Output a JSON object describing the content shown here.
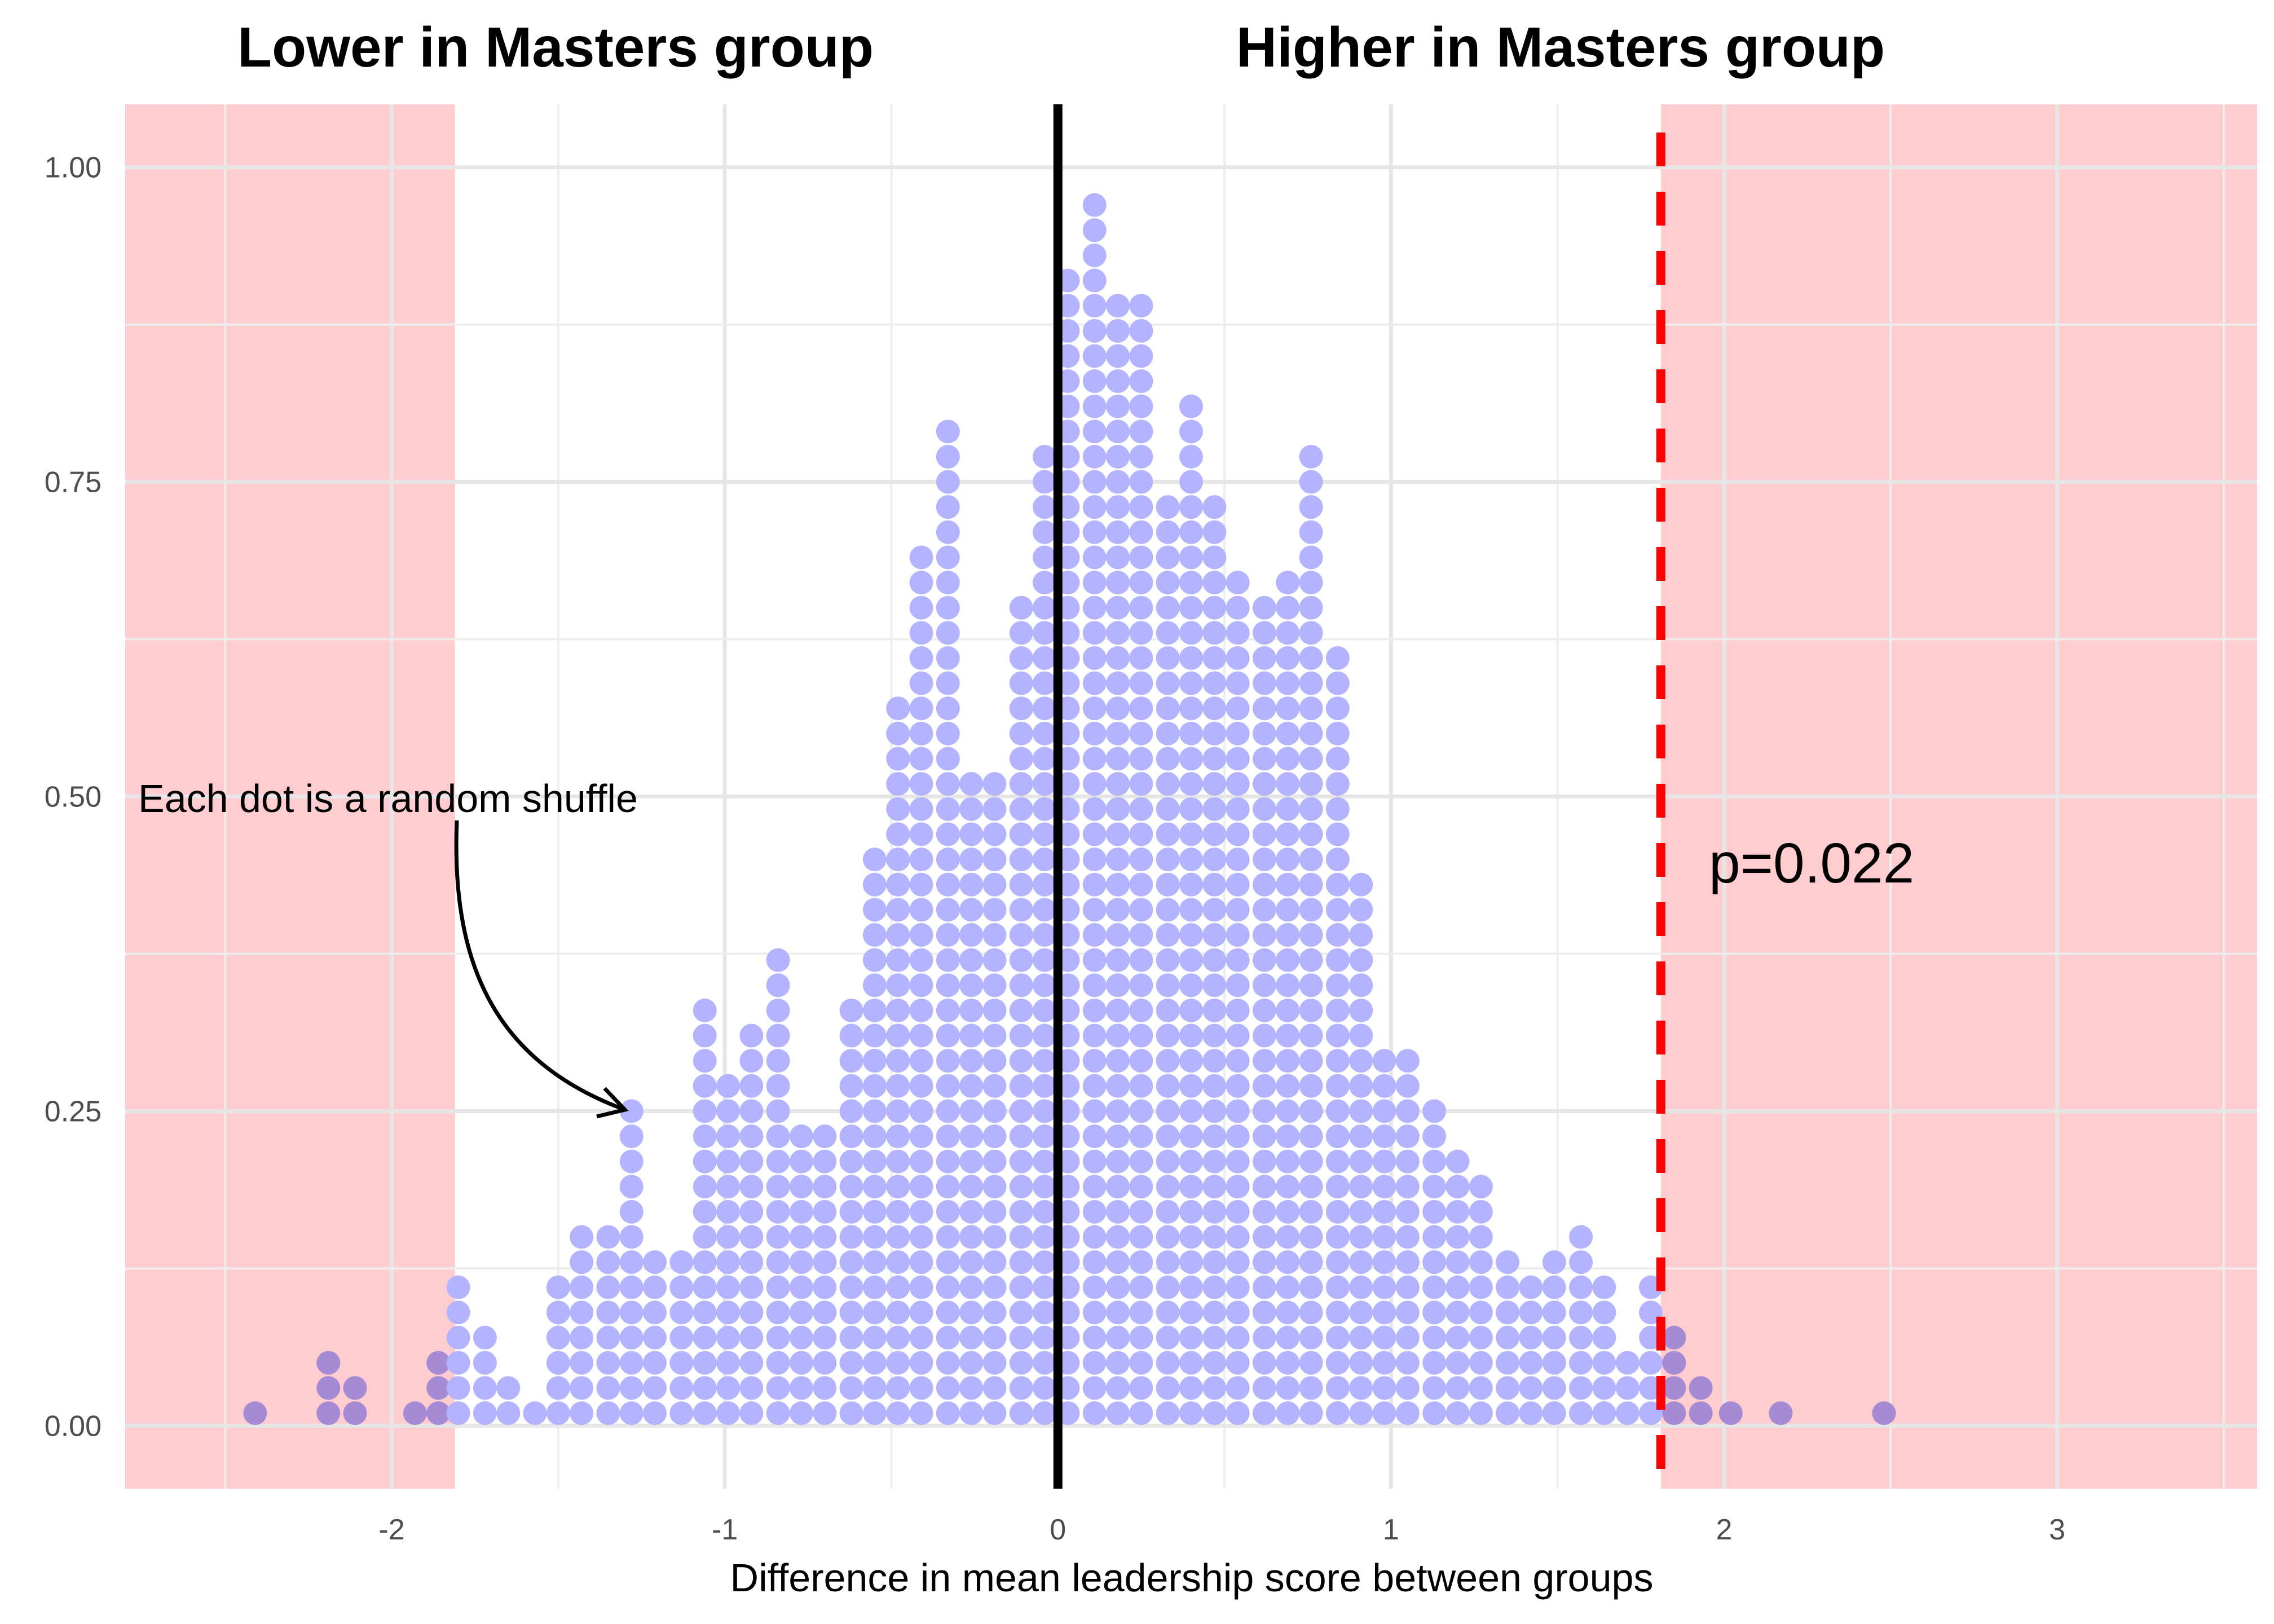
{
  "chart_data": {
    "type": "dotplot",
    "title": "",
    "xlabel": "Difference in mean leadership score between groups",
    "ylabel": "",
    "xlim": [
      -2.8,
      3.6
    ],
    "ylim": [
      -0.05,
      1.05
    ],
    "x_ticks": [
      -2,
      -1,
      0,
      1,
      2,
      3
    ],
    "y_ticks": [
      0,
      0.25,
      0.5,
      0.75,
      1
    ],
    "y_tick_labels": [
      "0.00",
      "0.25",
      "0.50",
      "0.75",
      "1.00"
    ],
    "x_tick_labels": [
      "-2",
      "-1",
      "0",
      "1",
      "2",
      "3"
    ],
    "grid": true,
    "dot_color": "#b3b3ff",
    "dot_color_in_critical_region": "#a58ad4",
    "dot_step_y": 0.02,
    "group_labels": {
      "left": "Lower in Masters group",
      "right": "Higher in Masters group"
    },
    "critical_regions": [
      {
        "from": -2.8,
        "to": -1.81,
        "color": "#ffcccf"
      },
      {
        "from": 1.81,
        "to": 3.6,
        "color": "#ffcccf"
      }
    ],
    "reference_line": {
      "x": 0,
      "color": "#000000"
    },
    "observed_line": {
      "x": 1.81,
      "color": "#ff0000",
      "style": "dashed"
    },
    "annotations": {
      "dot_note": "Each dot is a random shuffle",
      "p_value": "p=0.022"
    },
    "bins": [
      {
        "x": -2.41,
        "count": 1
      },
      {
        "x": -2.19,
        "count": 3
      },
      {
        "x": -2.11,
        "count": 2
      },
      {
        "x": -1.93,
        "count": 1
      },
      {
        "x": -1.86,
        "count": 3
      },
      {
        "x": -1.8,
        "count": 6
      },
      {
        "x": -1.72,
        "count": 4
      },
      {
        "x": -1.65,
        "count": 2
      },
      {
        "x": -1.57,
        "count": 1
      },
      {
        "x": -1.5,
        "count": 6
      },
      {
        "x": -1.43,
        "count": 8
      },
      {
        "x": -1.35,
        "count": 8
      },
      {
        "x": -1.28,
        "count": 13
      },
      {
        "x": -1.21,
        "count": 7
      },
      {
        "x": -1.13,
        "count": 7
      },
      {
        "x": -1.06,
        "count": 17
      },
      {
        "x": -0.99,
        "count": 14
      },
      {
        "x": -0.92,
        "count": 16
      },
      {
        "x": -0.84,
        "count": 19
      },
      {
        "x": -0.77,
        "count": 12
      },
      {
        "x": -0.7,
        "count": 12
      },
      {
        "x": -0.62,
        "count": 17
      },
      {
        "x": -0.55,
        "count": 23
      },
      {
        "x": -0.48,
        "count": 29
      },
      {
        "x": -0.41,
        "count": 35
      },
      {
        "x": -0.33,
        "count": 40
      },
      {
        "x": -0.26,
        "count": 26
      },
      {
        "x": -0.19,
        "count": 26
      },
      {
        "x": -0.11,
        "count": 33
      },
      {
        "x": -0.04,
        "count": 39
      },
      {
        "x": 0.03,
        "count": 46
      },
      {
        "x": 0.11,
        "count": 49
      },
      {
        "x": 0.18,
        "count": 45
      },
      {
        "x": 0.25,
        "count": 45
      },
      {
        "x": 0.33,
        "count": 37
      },
      {
        "x": 0.4,
        "count": 41
      },
      {
        "x": 0.47,
        "count": 37
      },
      {
        "x": 0.54,
        "count": 34
      },
      {
        "x": 0.62,
        "count": 33
      },
      {
        "x": 0.69,
        "count": 34
      },
      {
        "x": 0.76,
        "count": 39
      },
      {
        "x": 0.84,
        "count": 31
      },
      {
        "x": 0.91,
        "count": 22
      },
      {
        "x": 0.98,
        "count": 15
      },
      {
        "x": 1.05,
        "count": 15
      },
      {
        "x": 1.13,
        "count": 13
      },
      {
        "x": 1.2,
        "count": 11
      },
      {
        "x": 1.27,
        "count": 10
      },
      {
        "x": 1.35,
        "count": 7
      },
      {
        "x": 1.42,
        "count": 6
      },
      {
        "x": 1.49,
        "count": 7
      },
      {
        "x": 1.57,
        "count": 8
      },
      {
        "x": 1.64,
        "count": 6
      },
      {
        "x": 1.71,
        "count": 3
      },
      {
        "x": 1.78,
        "count": 6
      },
      {
        "x": 1.85,
        "count": 4
      },
      {
        "x": 1.93,
        "count": 2
      },
      {
        "x": 2.02,
        "count": 1
      },
      {
        "x": 2.17,
        "count": 1
      },
      {
        "x": 2.48,
        "count": 1
      }
    ]
  }
}
